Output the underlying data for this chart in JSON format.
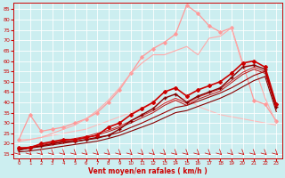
{
  "xlabel": "Vent moyen/en rafales ( km/h )",
  "bg_color": "#cceef0",
  "grid_color": "#aadddd",
  "xlim": [
    -0.5,
    23.5
  ],
  "ylim": [
    13,
    88
  ],
  "yticks": [
    15,
    20,
    25,
    30,
    35,
    40,
    45,
    50,
    55,
    60,
    65,
    70,
    75,
    80,
    85
  ],
  "xticks": [
    0,
    1,
    2,
    3,
    4,
    5,
    6,
    7,
    8,
    9,
    10,
    11,
    12,
    13,
    14,
    15,
    16,
    17,
    18,
    19,
    20,
    21,
    22,
    23
  ],
  "line_dark_red_marker_x": [
    0,
    1,
    2,
    3,
    4,
    5,
    6,
    7,
    8,
    9,
    10,
    11,
    12,
    13,
    14,
    15,
    16,
    17,
    18,
    19,
    20,
    21,
    22,
    23
  ],
  "line_dark_red_marker_y": [
    17,
    18,
    19,
    20,
    21,
    21,
    22,
    23,
    24,
    27,
    31,
    34,
    37,
    42,
    44,
    40,
    43,
    45,
    47,
    52,
    57,
    58,
    56,
    38
  ],
  "line_dark_red_straight_y": [
    17,
    17.8,
    18.6,
    19.4,
    20.2,
    21.0,
    21.8,
    22.6,
    24.0,
    25.5,
    27.8,
    30.0,
    32.5,
    35.0,
    37.5,
    38.5,
    40.5,
    42.5,
    44.5,
    47.0,
    50.0,
    53.0,
    55.0,
    37.0
  ],
  "line_dark2_straight_y": [
    16,
    16.5,
    17.2,
    18.0,
    18.8,
    19.6,
    20.4,
    21.2,
    22.5,
    24.0,
    26.0,
    28.0,
    30.0,
    32.5,
    35.0,
    36.0,
    38.0,
    40.0,
    42.0,
    44.5,
    47.5,
    50.5,
    52.5,
    35.5
  ],
  "line_red_marker_x": [
    0,
    1,
    2,
    3,
    4,
    5,
    6,
    7,
    8,
    9,
    10,
    11,
    12,
    13,
    14,
    15,
    16,
    17,
    18,
    19,
    20,
    21,
    22,
    23
  ],
  "line_red_marker_y": [
    18,
    18,
    20,
    21,
    22,
    22,
    23,
    24,
    28,
    30,
    34,
    37,
    40,
    45,
    47,
    43,
    46,
    48,
    50,
    54,
    59,
    60,
    57,
    39
  ],
  "line_pink_marker_x": [
    0,
    1,
    2,
    3,
    4,
    5,
    6,
    7,
    8,
    9,
    10,
    11,
    12,
    13,
    14,
    15,
    16,
    17,
    18,
    19,
    20,
    21,
    22,
    23
  ],
  "line_pink_marker_y": [
    22,
    34,
    26,
    27,
    28,
    30,
    32,
    35,
    40,
    46,
    54,
    62,
    66,
    69,
    73,
    87,
    83,
    77,
    74,
    76,
    59,
    41,
    39,
    31
  ],
  "line_pink_curve_y": [
    21,
    22,
    23,
    25,
    27,
    29,
    32,
    36,
    41,
    47,
    54,
    59,
    63,
    63,
    65,
    67,
    63,
    71,
    72,
    76,
    58,
    58,
    42,
    30
  ],
  "line_pink_light_straight_y": [
    22,
    22,
    23,
    24,
    25,
    26,
    27,
    29,
    31,
    33,
    35,
    37,
    39,
    40,
    41,
    42,
    38,
    36,
    34,
    33,
    32,
    31,
    30,
    29
  ],
  "line_red_straight1_y": [
    17.5,
    18.5,
    19.5,
    20.5,
    21.5,
    22.5,
    23.5,
    25.0,
    26.5,
    28.5,
    31.0,
    33.5,
    36.0,
    39.5,
    42.0,
    39.5,
    42.5,
    44.5,
    46.5,
    50.5,
    54.5,
    57.0,
    55.0,
    38.0
  ],
  "line_red_straight2_y": [
    17,
    18,
    18.8,
    19.8,
    20.8,
    21.8,
    22.8,
    24.2,
    25.8,
    27.8,
    30.0,
    32.5,
    35.0,
    38.5,
    41.0,
    38.5,
    41.5,
    43.5,
    45.5,
    49.5,
    53.5,
    56.0,
    54.0,
    37.5
  ],
  "arrow_color": "#cc0000",
  "tick_color": "#cc0000",
  "xlabel_color": "#cc0000"
}
